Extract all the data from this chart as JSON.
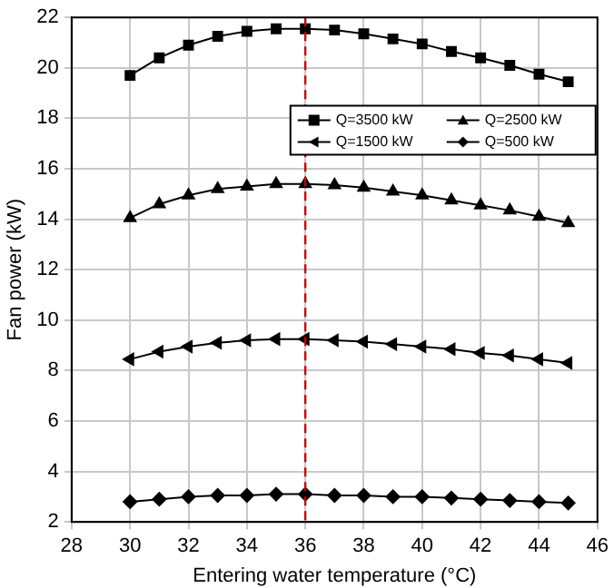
{
  "chart_data": {
    "type": "line",
    "xlabel": "Entering water temperature (°C)",
    "ylabel": "Fan power (kW)",
    "x": [
      30,
      31,
      32,
      33,
      34,
      35,
      36,
      37,
      38,
      39,
      40,
      41,
      42,
      43,
      44,
      45
    ],
    "xlim": [
      28,
      46
    ],
    "xticks": [
      28,
      30,
      32,
      34,
      36,
      38,
      40,
      42,
      44,
      46
    ],
    "ylim": [
      2,
      22
    ],
    "yticks": [
      2,
      4,
      6,
      8,
      10,
      12,
      14,
      16,
      18,
      20,
      22
    ],
    "grid": true,
    "legend": "top right",
    "ref_lines": [
      {
        "axis": "x",
        "value": 36,
        "color": "#cc0000",
        "line_style": "dashed"
      }
    ],
    "series": [
      {
        "name": "Q=3500 kW",
        "color": "#000000",
        "marker": "square",
        "values": [
          19.7,
          20.4,
          20.9,
          21.25,
          21.45,
          21.55,
          21.55,
          21.5,
          21.35,
          21.15,
          20.95,
          20.65,
          20.4,
          20.1,
          19.75,
          19.45
        ]
      },
      {
        "name": "Q=2500 kW",
        "color": "#000000",
        "marker": "triangle",
        "values": [
          14.05,
          14.6,
          14.95,
          15.2,
          15.3,
          15.4,
          15.4,
          15.35,
          15.25,
          15.1,
          14.95,
          14.75,
          14.55,
          14.35,
          14.1,
          13.85
        ]
      },
      {
        "name": "Q=1500 kW",
        "color": "#000000",
        "marker": "triangle-left",
        "values": [
          8.45,
          8.75,
          8.95,
          9.1,
          9.2,
          9.25,
          9.25,
          9.2,
          9.15,
          9.05,
          8.95,
          8.85,
          8.7,
          8.6,
          8.45,
          8.3
        ]
      },
      {
        "name": "Q=500 kW",
        "color": "#000000",
        "marker": "diamond",
        "values": [
          2.8,
          2.9,
          3.0,
          3.05,
          3.05,
          3.1,
          3.1,
          3.05,
          3.05,
          3.0,
          3.0,
          2.95,
          2.9,
          2.85,
          2.8,
          2.75
        ]
      }
    ]
  }
}
